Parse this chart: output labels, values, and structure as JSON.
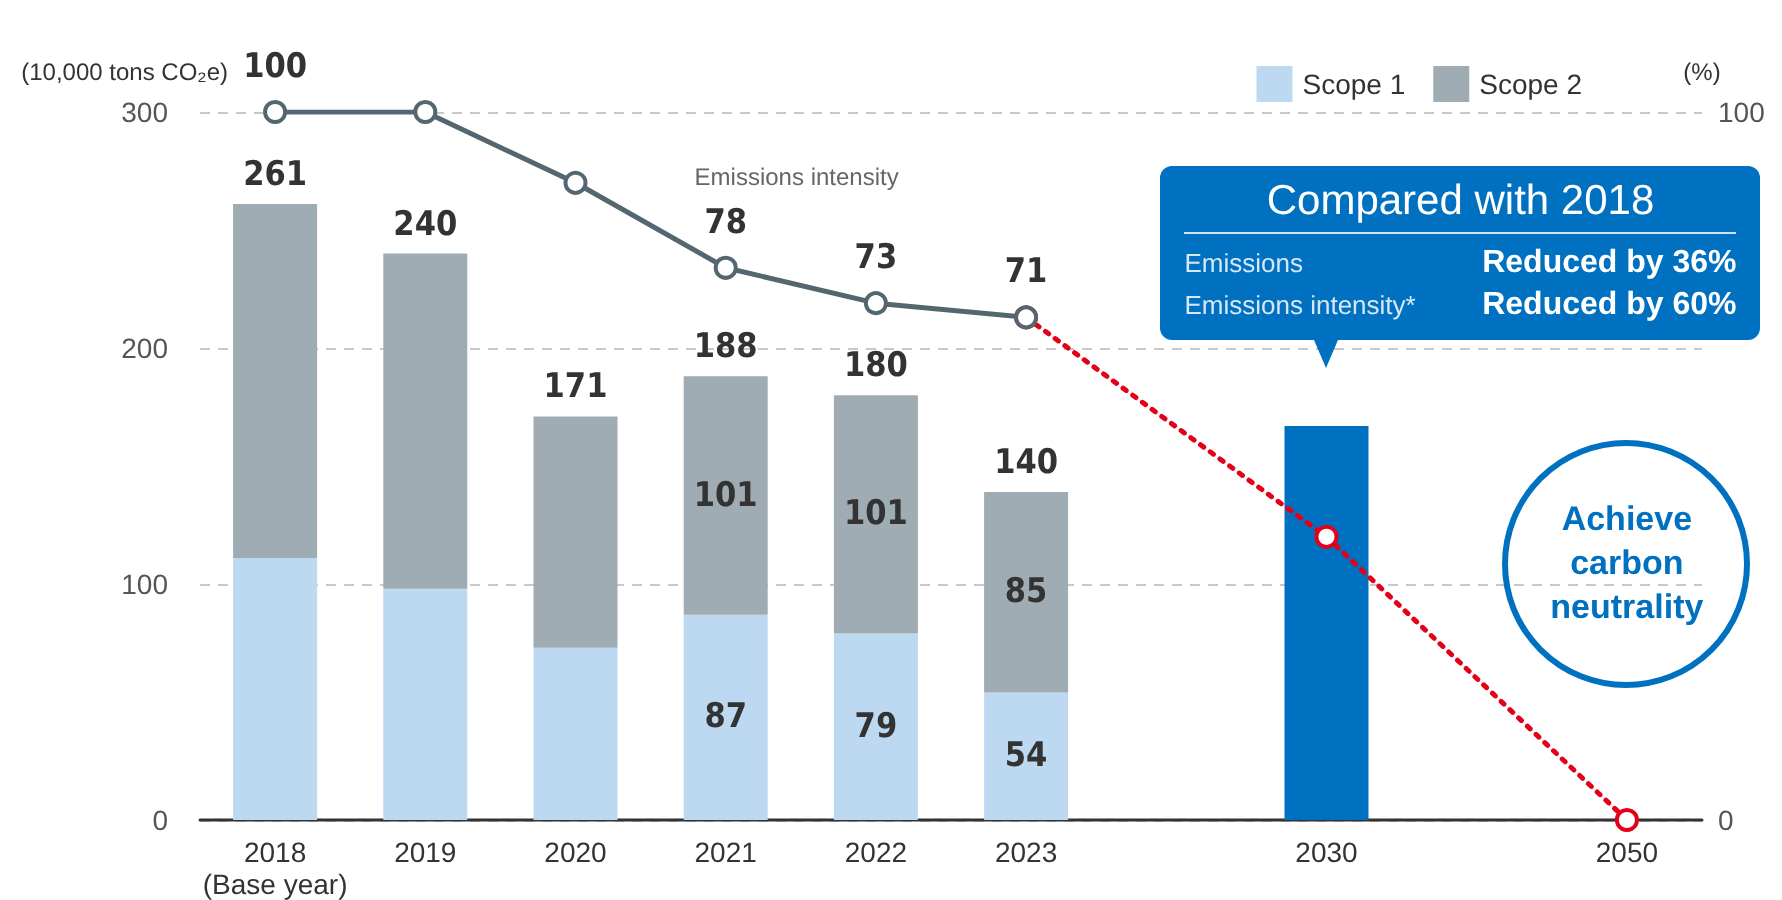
{
  "chart_data": {
    "type": "bar",
    "stacked": true,
    "ylabel": "(10,000 tons CO₂e)",
    "y2label": "(%)",
    "categories": [
      "2018\n(Base year)",
      "2019",
      "2020",
      "2021",
      "2022",
      "2023",
      null,
      "2030",
      null,
      "2050"
    ],
    "series": [
      {
        "name": "Scope 1",
        "color": "#bdd9f1",
        "values": [
          111,
          98,
          73,
          87,
          79,
          54,
          null,
          null,
          null,
          null
        ],
        "value_labels": [
          null,
          null,
          null,
          "87",
          "79",
          "54",
          null,
          null,
          null,
          null
        ]
      },
      {
        "name": "Scope 2",
        "color": "#a0acb3",
        "values": [
          150,
          142,
          98,
          101,
          101,
          85,
          null,
          null,
          null,
          null
        ],
        "value_labels": [
          null,
          null,
          null,
          "101",
          "101",
          "85",
          null,
          null,
          null,
          null
        ]
      },
      {
        "color": "#0070c0",
        "values": [
          null,
          null,
          null,
          null,
          null,
          null,
          null,
          167,
          null,
          null
        ]
      },
      {
        "name": "Emissions intensity",
        "type": "line",
        "axis": "y2",
        "color": "#546770",
        "marker": "circle",
        "line_style": "solid",
        "values": [
          100,
          100,
          90,
          78,
          73,
          71,
          null,
          null,
          null,
          null
        ],
        "value_labels": [
          "100",
          null,
          null,
          "78",
          "73",
          "71",
          null,
          null,
          null,
          null
        ]
      },
      {
        "type": "line",
        "axis": "y2",
        "color": "#e50019",
        "marker": "circle",
        "line_style": "dotted",
        "values": [
          null,
          null,
          null,
          null,
          null,
          71,
          null,
          40,
          null,
          0
        ]
      }
    ],
    "totals": [
      "261",
      "240",
      "171",
      "188",
      "180",
      "140",
      null,
      null,
      null,
      null
    ],
    "annotations": [
      "Compared with 2018",
      "Emissions",
      "Reduced by 36%",
      "Emissions intensity*",
      "Reduced by 60%",
      "Achieve carbon neutrality"
    ],
    "ylim": [
      0,
      300
    ],
    "yticks": [
      0,
      100,
      200,
      300
    ],
    "y2lim": [
      0,
      100
    ],
    "y2ticks": [
      0,
      100
    ],
    "grid": "y",
    "legend": "top right"
  }
}
